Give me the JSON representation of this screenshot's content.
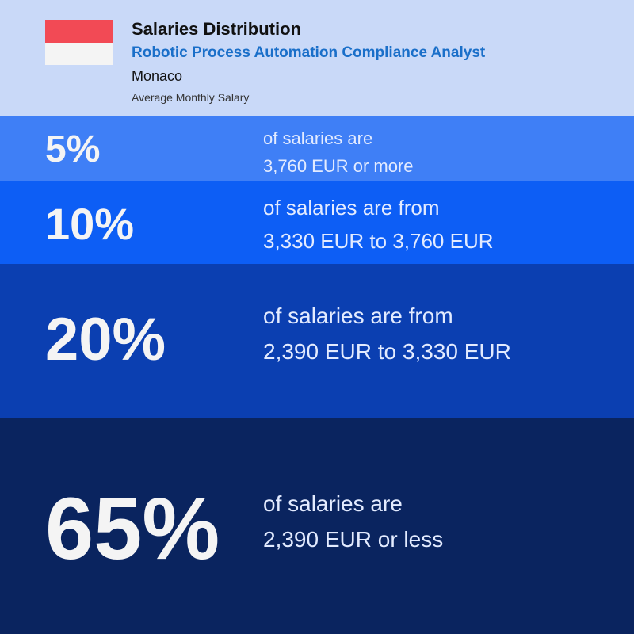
{
  "header": {
    "title": "Salaries Distribution",
    "subtitle": "Robotic Process Automation Compliance Analyst",
    "country": "Monaco",
    "caption": "Average Monthly Salary"
  },
  "bands": [
    {
      "percent": "5%",
      "lines": [
        "of salaries are",
        "3,760 EUR or more"
      ]
    },
    {
      "percent": "10%",
      "lines": [
        "of salaries are from",
        "3,330 EUR to 3,760 EUR"
      ]
    },
    {
      "percent": "20%",
      "lines": [
        "of salaries are from",
        "2,390 EUR to 3,330 EUR"
      ]
    },
    {
      "percent": "65%",
      "lines": [
        "of salaries are",
        "2,390 EUR or less"
      ]
    }
  ]
}
